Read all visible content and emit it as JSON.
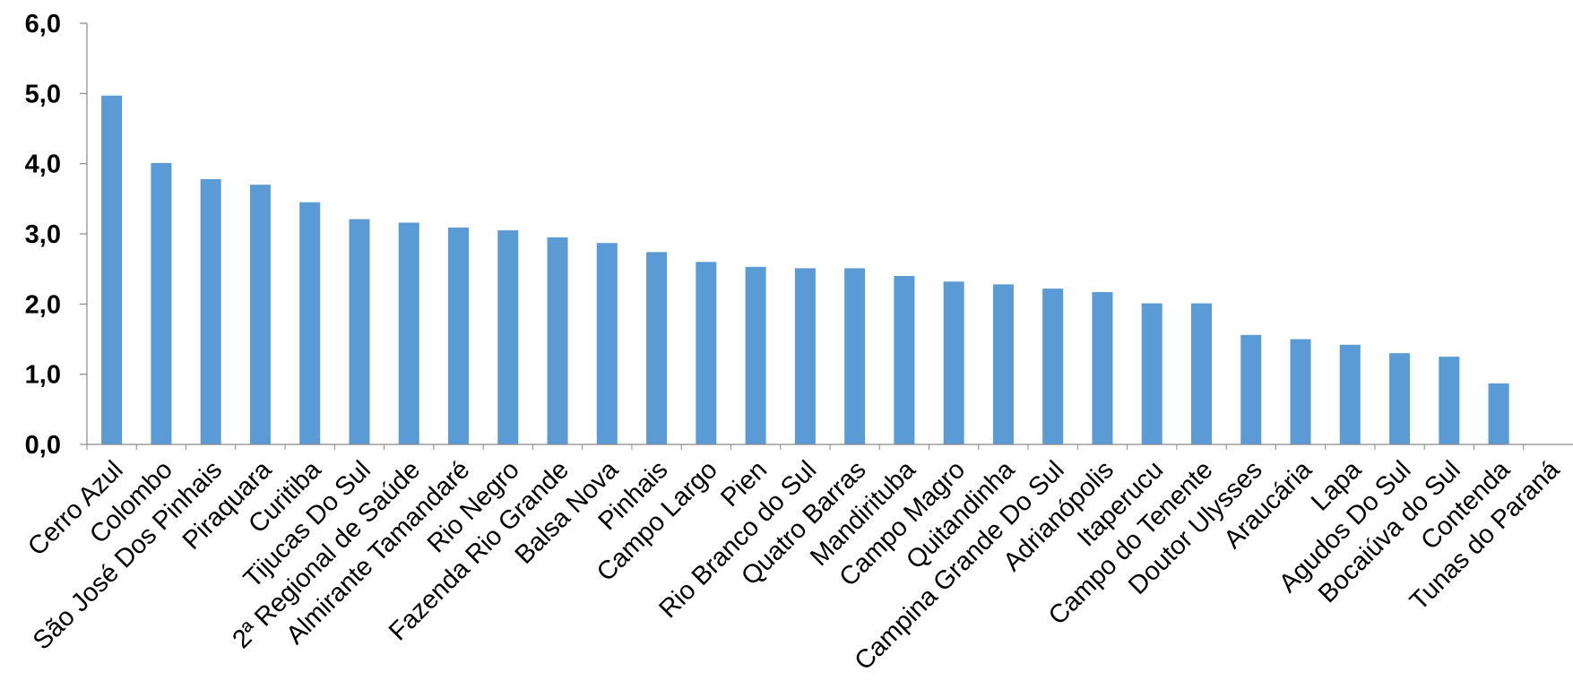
{
  "chart_data": {
    "type": "bar",
    "title": "",
    "xlabel": "",
    "ylabel": "",
    "ylim": [
      0,
      6
    ],
    "yticks": [
      "0,0",
      "1,0",
      "2,0",
      "3,0",
      "4,0",
      "5,0",
      "6,0"
    ],
    "grid": false,
    "legend": "none",
    "bar_color": "#5b9bd5",
    "categories": [
      "Cerro Azul",
      "Colombo",
      "São José Dos Pinhais",
      "Piraquara",
      "Curitiba",
      "Tijucas Do Sul",
      "2ª Regional de Saúde",
      "Almirante Tamandaré",
      "Rio Negro",
      "Fazenda Rio Grande",
      "Balsa Nova",
      "Pinhais",
      "Campo Largo",
      "Pien",
      "Rio Branco do Sul",
      "Quatro Barras",
      "Mandirituba",
      "Campo Magro",
      "Quitandinha",
      "Campina Grande Do Sul",
      "Adrianópolis",
      "Itaperucu",
      "Campo do Tenente",
      "Doutor Ulysses",
      "Araucária",
      "Lapa",
      "Agudos Do Sul",
      "Bocaiúva do Sul",
      "Contenda",
      "Tunas do Paraná"
    ],
    "values": [
      4.97,
      4.01,
      3.78,
      3.7,
      3.45,
      3.21,
      3.16,
      3.09,
      3.05,
      2.95,
      2.87,
      2.74,
      2.6,
      2.53,
      2.51,
      2.51,
      2.4,
      2.32,
      2.28,
      2.22,
      2.17,
      2.01,
      2.01,
      1.56,
      1.5,
      1.42,
      1.3,
      1.25,
      0.87,
      0.0
    ]
  }
}
